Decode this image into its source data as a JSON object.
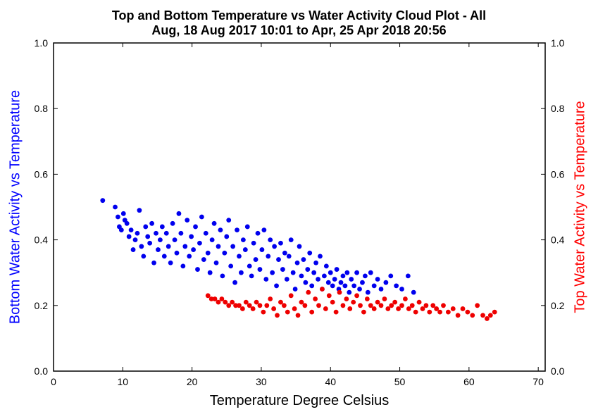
{
  "chart_data": {
    "type": "scatter",
    "title_line1": "Top and Bottom Temperature vs Water Activity Cloud Plot - All",
    "title_line2": "Aug, 18 Aug 2017 10:01 to Apr, 25 Apr 2018 20:56",
    "xlabel": "Temperature Degree Celsius",
    "ylabel_left": "Bottom Water Activity vs Temperature",
    "ylabel_right": "Top Water Activity vs Temperature",
    "xlim": [
      0,
      71
    ],
    "ylim": [
      0.0,
      1.0
    ],
    "x_ticks": [
      "0",
      "10",
      "20",
      "30",
      "40",
      "50",
      "60",
      "70"
    ],
    "y_ticks": [
      "0.0",
      "0.2",
      "0.4",
      "0.6",
      "0.8",
      "1.0"
    ],
    "grid": false,
    "colors": {
      "bottom": "#0000ee",
      "top": "#ee0000",
      "ylabel_left": "#0000ff",
      "ylabel_right": "#ff0000"
    },
    "series": [
      {
        "points": [
          [
            7.1,
            0.52
          ],
          [
            8.9,
            0.5
          ],
          [
            9.3,
            0.47
          ],
          [
            9.5,
            0.44
          ],
          [
            9.8,
            0.43
          ],
          [
            10.1,
            0.48
          ],
          [
            10.3,
            0.46
          ],
          [
            10.6,
            0.45
          ],
          [
            10.9,
            0.41
          ],
          [
            11.2,
            0.43
          ],
          [
            11.5,
            0.37
          ],
          [
            11.8,
            0.4
          ],
          [
            12.1,
            0.42
          ],
          [
            12.4,
            0.49
          ],
          [
            12.7,
            0.38
          ],
          [
            13.0,
            0.35
          ],
          [
            13.3,
            0.44
          ],
          [
            13.6,
            0.41
          ],
          [
            13.9,
            0.39
          ],
          [
            14.2,
            0.45
          ],
          [
            14.5,
            0.33
          ],
          [
            14.8,
            0.42
          ],
          [
            15.1,
            0.37
          ],
          [
            15.4,
            0.4
          ],
          [
            15.7,
            0.44
          ],
          [
            16.0,
            0.35
          ],
          [
            16.3,
            0.42
          ],
          [
            16.6,
            0.38
          ],
          [
            16.9,
            0.33
          ],
          [
            17.2,
            0.45
          ],
          [
            17.5,
            0.4
          ],
          [
            17.8,
            0.36
          ],
          [
            18.1,
            0.48
          ],
          [
            18.4,
            0.42
          ],
          [
            18.7,
            0.32
          ],
          [
            19.0,
            0.38
          ],
          [
            19.3,
            0.46
          ],
          [
            19.6,
            0.35
          ],
          [
            19.9,
            0.41
          ],
          [
            20.2,
            0.37
          ],
          [
            20.5,
            0.44
          ],
          [
            20.8,
            0.31
          ],
          [
            21.1,
            0.39
          ],
          [
            21.4,
            0.47
          ],
          [
            21.7,
            0.34
          ],
          [
            22.0,
            0.42
          ],
          [
            22.3,
            0.36
          ],
          [
            22.6,
            0.3
          ],
          [
            22.9,
            0.4
          ],
          [
            23.2,
            0.45
          ],
          [
            23.5,
            0.33
          ],
          [
            23.8,
            0.38
          ],
          [
            24.1,
            0.43
          ],
          [
            24.4,
            0.29
          ],
          [
            24.7,
            0.36
          ],
          [
            25.0,
            0.41
          ],
          [
            25.3,
            0.46
          ],
          [
            25.6,
            0.32
          ],
          [
            25.9,
            0.38
          ],
          [
            26.2,
            0.27
          ],
          [
            26.5,
            0.43
          ],
          [
            26.8,
            0.35
          ],
          [
            27.1,
            0.3
          ],
          [
            27.4,
            0.4
          ],
          [
            27.7,
            0.37
          ],
          [
            28.0,
            0.44
          ],
          [
            28.3,
            0.32
          ],
          [
            28.6,
            0.29
          ],
          [
            28.9,
            0.39
          ],
          [
            29.2,
            0.34
          ],
          [
            29.5,
            0.42
          ],
          [
            29.8,
            0.31
          ],
          [
            30.1,
            0.37
          ],
          [
            30.4,
            0.43
          ],
          [
            30.7,
            0.28
          ],
          [
            31.0,
            0.35
          ],
          [
            31.3,
            0.4
          ],
          [
            31.6,
            0.3
          ],
          [
            31.9,
            0.38
          ],
          [
            32.2,
            0.26
          ],
          [
            32.5,
            0.34
          ],
          [
            32.8,
            0.39
          ],
          [
            33.1,
            0.31
          ],
          [
            33.4,
            0.36
          ],
          [
            33.7,
            0.28
          ],
          [
            34.0,
            0.35
          ],
          [
            34.3,
            0.4
          ],
          [
            34.6,
            0.3
          ],
          [
            34.9,
            0.25
          ],
          [
            35.2,
            0.33
          ],
          [
            35.5,
            0.38
          ],
          [
            35.8,
            0.29
          ],
          [
            36.1,
            0.34
          ],
          [
            36.4,
            0.27
          ],
          [
            36.7,
            0.31
          ],
          [
            37.0,
            0.36
          ],
          [
            37.3,
            0.26
          ],
          [
            37.6,
            0.3
          ],
          [
            37.9,
            0.33
          ],
          [
            38.2,
            0.28
          ],
          [
            38.5,
            0.35
          ],
          [
            38.8,
            0.25
          ],
          [
            39.1,
            0.29
          ],
          [
            39.4,
            0.32
          ],
          [
            39.7,
            0.27
          ],
          [
            40.0,
            0.3
          ],
          [
            40.3,
            0.26
          ],
          [
            40.6,
            0.28
          ],
          [
            40.9,
            0.31
          ],
          [
            41.2,
            0.25
          ],
          [
            41.5,
            0.27
          ],
          [
            41.8,
            0.29
          ],
          [
            42.1,
            0.26
          ],
          [
            42.4,
            0.3
          ],
          [
            42.7,
            0.24
          ],
          [
            43.0,
            0.28
          ],
          [
            43.4,
            0.26
          ],
          [
            43.8,
            0.3
          ],
          [
            44.2,
            0.25
          ],
          [
            44.6,
            0.27
          ],
          [
            45.0,
            0.29
          ],
          [
            45.4,
            0.24
          ],
          [
            45.8,
            0.3
          ],
          [
            46.3,
            0.26
          ],
          [
            46.8,
            0.28
          ],
          [
            47.3,
            0.25
          ],
          [
            48.0,
            0.27
          ],
          [
            48.7,
            0.29
          ],
          [
            49.5,
            0.26
          ],
          [
            50.3,
            0.25
          ],
          [
            51.2,
            0.29
          ],
          [
            52.0,
            0.24
          ]
        ]
      },
      {
        "points": [
          [
            22.3,
            0.23
          ],
          [
            22.8,
            0.22
          ],
          [
            23.3,
            0.22
          ],
          [
            23.8,
            0.21
          ],
          [
            24.3,
            0.22
          ],
          [
            24.8,
            0.21
          ],
          [
            25.3,
            0.2
          ],
          [
            25.8,
            0.21
          ],
          [
            26.3,
            0.2
          ],
          [
            26.8,
            0.2
          ],
          [
            27.3,
            0.19
          ],
          [
            27.8,
            0.21
          ],
          [
            28.3,
            0.2
          ],
          [
            28.8,
            0.19
          ],
          [
            29.3,
            0.21
          ],
          [
            29.8,
            0.2
          ],
          [
            30.3,
            0.18
          ],
          [
            30.8,
            0.2
          ],
          [
            31.3,
            0.22
          ],
          [
            31.8,
            0.19
          ],
          [
            32.3,
            0.17
          ],
          [
            32.8,
            0.21
          ],
          [
            33.3,
            0.2
          ],
          [
            33.8,
            0.18
          ],
          [
            34.3,
            0.23
          ],
          [
            34.8,
            0.19
          ],
          [
            35.3,
            0.17
          ],
          [
            35.8,
            0.21
          ],
          [
            36.3,
            0.2
          ],
          [
            36.8,
            0.24
          ],
          [
            37.3,
            0.18
          ],
          [
            37.8,
            0.22
          ],
          [
            38.3,
            0.2
          ],
          [
            38.8,
            0.25
          ],
          [
            39.3,
            0.19
          ],
          [
            39.8,
            0.23
          ],
          [
            40.3,
            0.21
          ],
          [
            40.8,
            0.18
          ],
          [
            41.3,
            0.24
          ],
          [
            41.8,
            0.2
          ],
          [
            42.3,
            0.22
          ],
          [
            42.8,
            0.19
          ],
          [
            43.3,
            0.21
          ],
          [
            43.8,
            0.23
          ],
          [
            44.3,
            0.2
          ],
          [
            44.8,
            0.18
          ],
          [
            45.3,
            0.22
          ],
          [
            45.8,
            0.2
          ],
          [
            46.3,
            0.19
          ],
          [
            46.8,
            0.21
          ],
          [
            47.3,
            0.2
          ],
          [
            47.8,
            0.22
          ],
          [
            48.3,
            0.19
          ],
          [
            48.8,
            0.2
          ],
          [
            49.3,
            0.21
          ],
          [
            49.8,
            0.19
          ],
          [
            50.3,
            0.2
          ],
          [
            50.8,
            0.22
          ],
          [
            51.3,
            0.19
          ],
          [
            51.8,
            0.2
          ],
          [
            52.3,
            0.18
          ],
          [
            52.8,
            0.21
          ],
          [
            53.3,
            0.19
          ],
          [
            53.8,
            0.2
          ],
          [
            54.3,
            0.18
          ],
          [
            54.8,
            0.2
          ],
          [
            55.3,
            0.19
          ],
          [
            55.8,
            0.18
          ],
          [
            56.3,
            0.2
          ],
          [
            57.0,
            0.18
          ],
          [
            57.7,
            0.19
          ],
          [
            58.4,
            0.17
          ],
          [
            59.1,
            0.19
          ],
          [
            59.8,
            0.18
          ],
          [
            60.5,
            0.17
          ],
          [
            61.2,
            0.2
          ],
          [
            62.0,
            0.17
          ],
          [
            62.6,
            0.16
          ],
          [
            63.1,
            0.17
          ],
          [
            63.7,
            0.18
          ]
        ]
      }
    ]
  }
}
